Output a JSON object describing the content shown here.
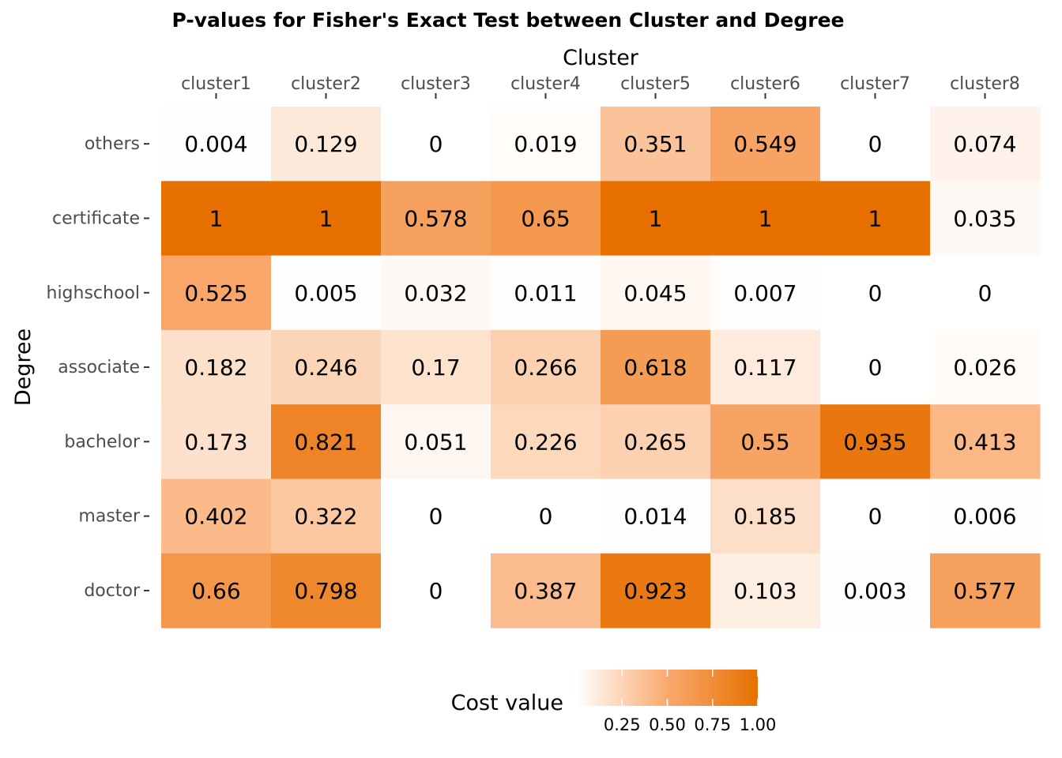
{
  "chart_data": {
    "type": "heatmap",
    "title": "P-values for Fisher's Exact Test between Cluster and Degree",
    "xlabel": "Cluster",
    "ylabel": "Degree",
    "x_categories": [
      "cluster1",
      "cluster2",
      "cluster3",
      "cluster4",
      "cluster5",
      "cluster6",
      "cluster7",
      "cluster8"
    ],
    "y_categories": [
      "others",
      "certificate",
      "highschool",
      "associate",
      "bachelor",
      "master",
      "doctor"
    ],
    "values": [
      [
        0.004,
        0.129,
        0,
        0.019,
        0.351,
        0.549,
        0,
        0.074
      ],
      [
        1,
        1,
        0.578,
        0.65,
        1,
        1,
        1,
        0.035
      ],
      [
        0.525,
        0.005,
        0.032,
        0.011,
        0.045,
        0.007,
        0,
        0
      ],
      [
        0.182,
        0.246,
        0.17,
        0.266,
        0.618,
        0.117,
        0,
        0.026
      ],
      [
        0.173,
        0.821,
        0.051,
        0.226,
        0.265,
        0.55,
        0.935,
        0.413
      ],
      [
        0.402,
        0.322,
        0,
        0,
        0.014,
        0.185,
        0,
        0.006
      ],
      [
        0.66,
        0.798,
        0,
        0.387,
        0.923,
        0.103,
        0.003,
        0.577
      ]
    ],
    "legend": {
      "title": "Cost value",
      "ticks": [
        "0.25",
        "0.50",
        "0.75",
        "1.00"
      ],
      "tick_values": [
        0.25,
        0.5,
        0.75,
        1.0
      ],
      "range": [
        0,
        1
      ],
      "position": "bottom"
    },
    "colors": {
      "low": "#ffffff",
      "mid": "#f9a96e",
      "high": "#e87000"
    }
  }
}
